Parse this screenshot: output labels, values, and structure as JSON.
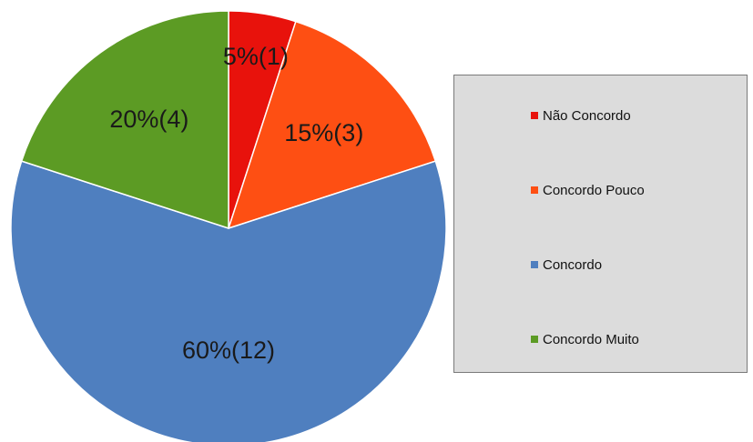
{
  "chart_data": {
    "type": "pie",
    "slices": [
      {
        "label": "Não Concordo",
        "percent": 5,
        "count": 1,
        "display": "5%(1)",
        "color": "#e8120c"
      },
      {
        "label": "Concordo Pouco",
        "percent": 15,
        "count": 3,
        "display": "15%(3)",
        "color": "#fe4f13"
      },
      {
        "label": "Concordo",
        "percent": 60,
        "count": 12,
        "display": "60%(12)",
        "color": "#4f7fbf"
      },
      {
        "label": "Concordo Muito",
        "percent": 20,
        "count": 4,
        "display": "20%(4)",
        "color": "#5c9b24"
      }
    ],
    "legend": {
      "position": "right",
      "background": "#dcdcdc"
    }
  }
}
